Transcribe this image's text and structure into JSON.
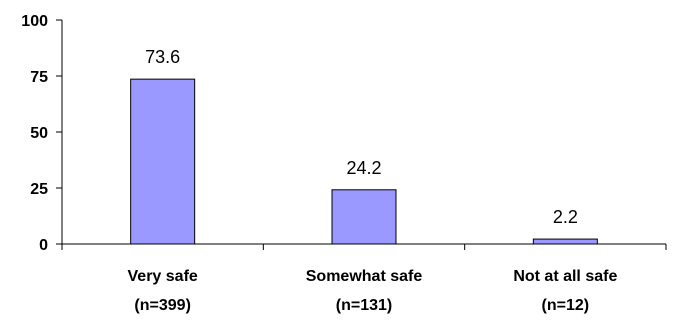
{
  "chart_data": {
    "type": "bar",
    "categories": [
      {
        "name": "Very safe",
        "n": "(n=399)"
      },
      {
        "name": "Somewhat safe",
        "n": "(n=131)"
      },
      {
        "name": "Not at all safe",
        "n": "(n=12)"
      }
    ],
    "values": [
      73.6,
      24.2,
      2.2
    ],
    "data_labels": [
      "73.6",
      "24.2",
      "2.2"
    ],
    "ylim": [
      0,
      100
    ],
    "yticks": [
      0,
      25,
      50,
      75,
      100
    ],
    "title": "",
    "xlabel": "",
    "ylabel": "",
    "grid": false,
    "legend": "none",
    "bar_color": "#9999ff",
    "bar_border_color": "#000000"
  }
}
